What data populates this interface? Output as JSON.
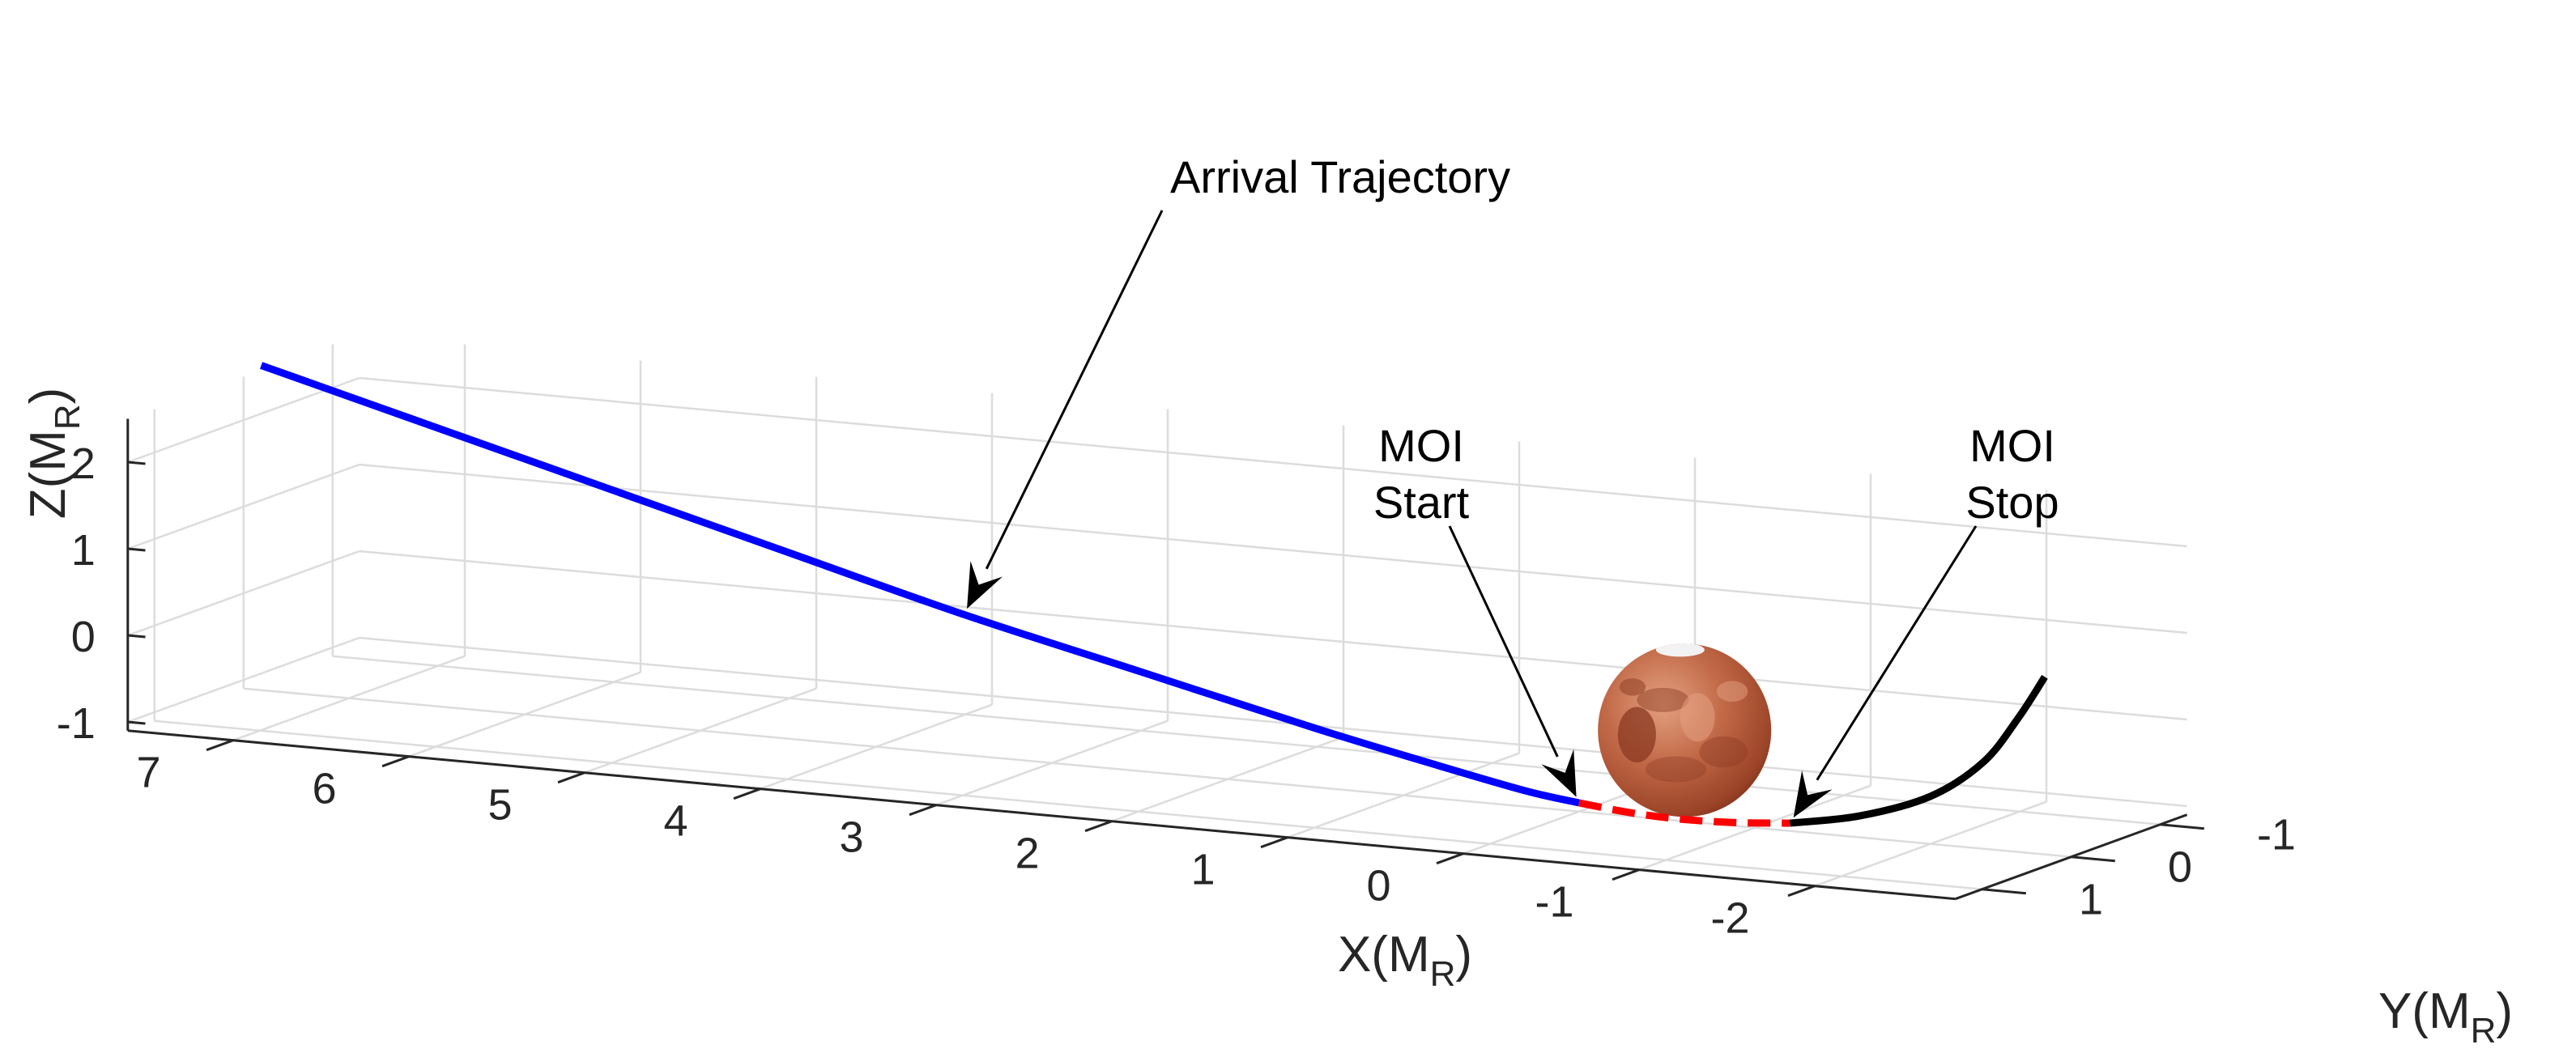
{
  "chart_data": {
    "type": "line",
    "projection": "3d",
    "title": "",
    "xlabel": {
      "main": "X(M",
      "sub": "R",
      "close": ")"
    },
    "ylabel": {
      "main": "Y(M",
      "sub": "R",
      "close": ")"
    },
    "zlabel": {
      "main": "Z(M",
      "sub": "R",
      "close": ")"
    },
    "x_ticks": [
      "7",
      "6",
      "5",
      "4",
      "3",
      "2",
      "1",
      "0",
      "-1",
      "-2"
    ],
    "y_ticks": [
      "1",
      "0",
      "-1"
    ],
    "z_ticks": [
      "2",
      "1",
      "0",
      "-1"
    ],
    "xlim": [
      -2.8,
      7.6
    ],
    "ylim": [
      -1.3,
      1.3
    ],
    "zlim": [
      -1.1,
      2.5
    ],
    "grid": true,
    "box": false,
    "series": [
      {
        "color": "#0000ff",
        "style": "solid",
        "x": [
          7.5,
          6.0,
          4.5,
          3.5,
          2.5,
          1.5,
          0.8,
          0.3,
          0.0
        ],
        "y": [
          0,
          0,
          0,
          0,
          0,
          0,
          0,
          0,
          0
        ],
        "z": [
          2.65,
          1.85,
          1.05,
          0.52,
          0.05,
          -0.42,
          -0.72,
          -0.92,
          -1.0
        ]
      },
      {
        "color": "#ff0000",
        "style": "dashed",
        "x": [
          0.0,
          -0.3,
          -0.6,
          -0.9,
          -1.2
        ],
        "y": [
          0,
          0,
          0,
          0,
          0
        ],
        "z": [
          -1.0,
          -1.06,
          -1.08,
          -1.06,
          -1.01
        ]
      },
      {
        "color": "#000000",
        "style": "solid",
        "x": [
          -1.2,
          -1.6,
          -2.0,
          -2.3,
          -2.5,
          -2.65
        ],
        "y": [
          0,
          0,
          0,
          0,
          0,
          0
        ],
        "z": [
          -1.01,
          -0.85,
          -0.55,
          -0.1,
          0.45,
          0.95
        ]
      }
    ],
    "sphere": {
      "label": "Mars",
      "center": [
        -0.6,
        0,
        -0.05
      ],
      "radius": 1.0,
      "colors": [
        "#c26a48",
        "#8a3a22",
        "#e3a181",
        "#f2f2f2"
      ]
    },
    "annotations": [
      {
        "text": [
          "Arrival Trajectory"
        ],
        "target_series": 0,
        "target_index": 3
      },
      {
        "text": [
          "MOI",
          "Start"
        ],
        "target_series": 1,
        "target_index": 0
      },
      {
        "text": [
          "MOI",
          "Stop"
        ],
        "target_series": 1,
        "target_index": 4
      }
    ]
  }
}
